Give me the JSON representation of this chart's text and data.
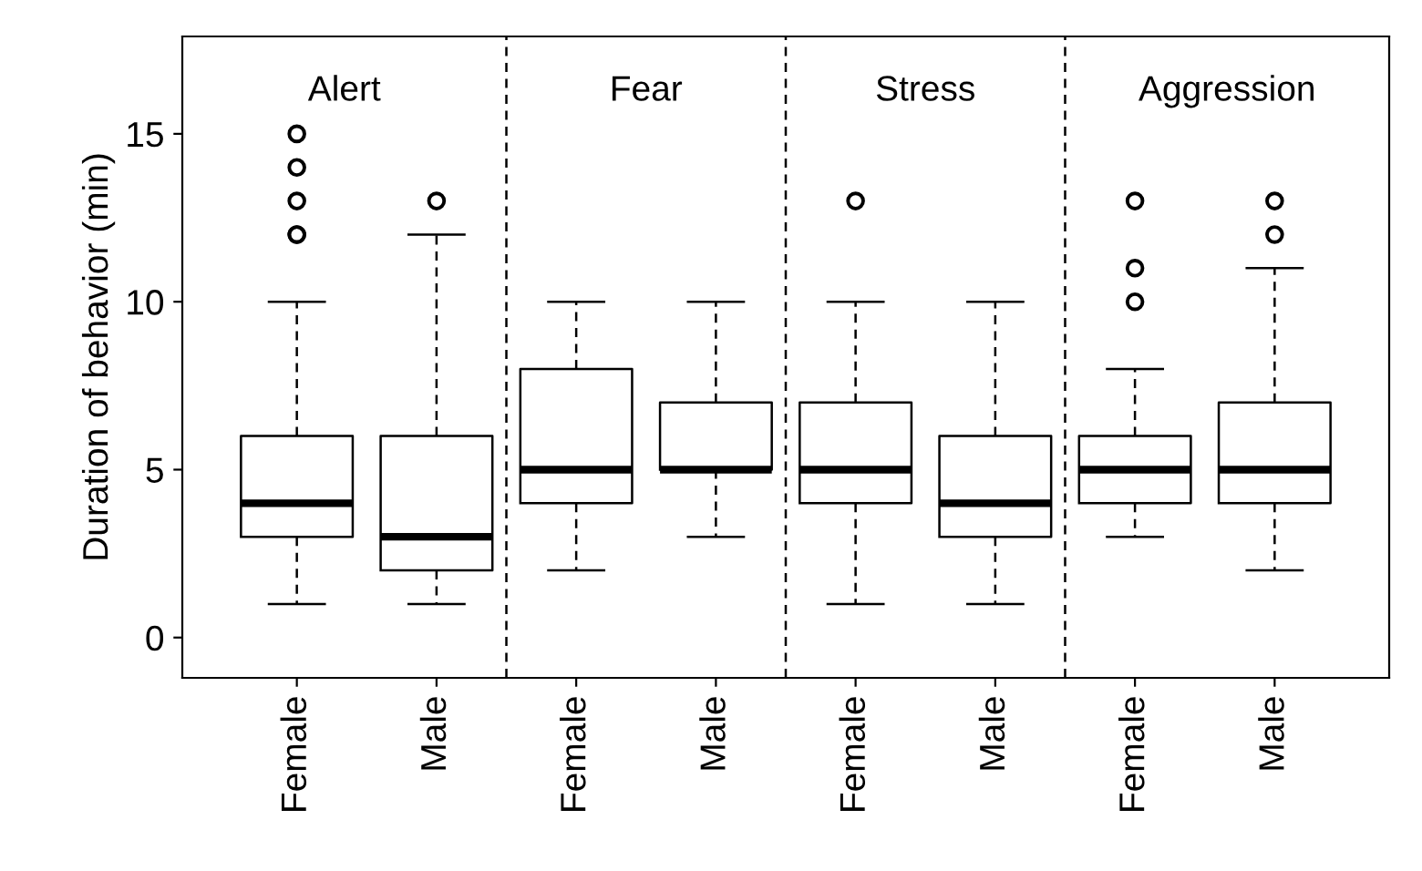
{
  "chart_data": {
    "type": "box",
    "ylabel": "Duration of behavior (min)",
    "categories": [
      "Female",
      "Male",
      "Female",
      "Male",
      "Female",
      "Male",
      "Female",
      "Male"
    ],
    "boxes": [
      {
        "low": 1,
        "q1": 3,
        "median": 4,
        "q3": 6,
        "high": 10,
        "outliers": [
          12,
          12,
          13,
          14,
          15
        ]
      },
      {
        "low": 1,
        "q1": 2,
        "median": 3,
        "q3": 6,
        "high": 12,
        "outliers": [
          13
        ]
      },
      {
        "low": 2,
        "q1": 4,
        "median": 5,
        "q3": 8,
        "high": 10
      },
      {
        "low": 3,
        "q1": 5,
        "median": 5,
        "q3": 7,
        "high": 10
      },
      {
        "low": 1,
        "q1": 4,
        "median": 5,
        "q3": 7,
        "high": 10,
        "outliers": [
          13
        ]
      },
      {
        "low": 1,
        "q1": 3,
        "median": 4,
        "q3": 6,
        "high": 10
      },
      {
        "low": 3,
        "q1": 4,
        "median": 5,
        "q3": 6,
        "high": 8,
        "outliers": [
          10,
          11,
          13
        ]
      },
      {
        "low": 2,
        "q1": 4,
        "median": 5,
        "q3": 7,
        "high": 11,
        "outliers": [
          12,
          13
        ]
      }
    ],
    "annotations": [
      "Alert",
      "Fear",
      "Stress",
      "Aggression"
    ],
    "ylim": [
      -1.2,
      17.9
    ],
    "yticks": [
      0,
      5,
      10,
      15
    ],
    "grid": false,
    "legend": false
  }
}
